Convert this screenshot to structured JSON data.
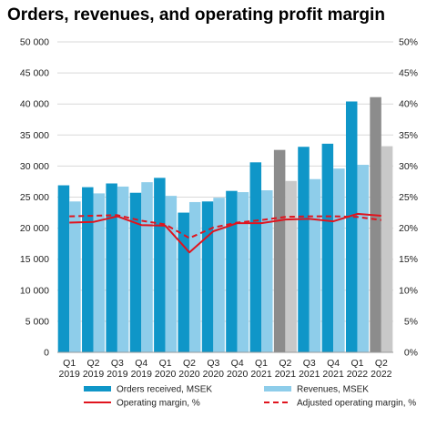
{
  "chart_data": {
    "type": "bar",
    "title": "Orders, revenues, and operating profit margin",
    "categories": [
      [
        "Q1",
        "2019"
      ],
      [
        "Q2",
        "2019"
      ],
      [
        "Q3",
        "2019"
      ],
      [
        "Q4",
        "2019"
      ],
      [
        "Q1",
        "2020"
      ],
      [
        "Q2",
        "2020"
      ],
      [
        "Q3",
        "2020"
      ],
      [
        "Q4",
        "2020"
      ],
      [
        "Q1",
        "2021"
      ],
      [
        "Q2",
        "2021"
      ],
      [
        "Q3",
        "2021"
      ],
      [
        "Q4",
        "2021"
      ],
      [
        "Q1",
        "2022"
      ],
      [
        "Q2",
        "2022"
      ]
    ],
    "y_left": {
      "min": 0,
      "max": 50000,
      "step": 5000,
      "tick_labels": [
        "0",
        "5 000",
        "10 000",
        "15 000",
        "20 000",
        "25 000",
        "30 000",
        "35 000",
        "40 000",
        "45 000",
        "50 000"
      ]
    },
    "y_right": {
      "min": 0,
      "max": 50,
      "step": 5,
      "tick_labels": [
        "0%",
        "5%",
        "10%",
        "15%",
        "20%",
        "25%",
        "30%",
        "35%",
        "40%",
        "45%",
        "50%"
      ]
    },
    "grid": true,
    "legend_position": "bottom",
    "series": [
      {
        "name": "Orders received, MSEK",
        "kind": "bar",
        "axis": "left",
        "color": "#0F96C8",
        "values": [
          26900,
          26600,
          27200,
          25700,
          28100,
          22500,
          24300,
          26000,
          30600,
          32600,
          33100,
          33600,
          40400,
          41100
        ],
        "bar_colors": [
          "#0F96C8",
          "#0F96C8",
          "#0F96C8",
          "#0F96C8",
          "#0F96C8",
          "#0F96C8",
          "#0F96C8",
          "#0F96C8",
          "#0F96C8",
          "#8C8C8C",
          "#0F96C8",
          "#0F96C8",
          "#0F96C8",
          "#8C8C8C"
        ]
      },
      {
        "name": "Revenues, MSEK",
        "kind": "bar",
        "axis": "left",
        "color": "#8ECDEA",
        "values": [
          24300,
          25600,
          26700,
          27400,
          25200,
          24200,
          24900,
          25800,
          26100,
          27600,
          27900,
          29600,
          30200,
          33200
        ],
        "bar_colors": [
          "#8ECDEA",
          "#8ECDEA",
          "#8ECDEA",
          "#8ECDEA",
          "#8ECDEA",
          "#8ECDEA",
          "#8ECDEA",
          "#8ECDEA",
          "#8ECDEA",
          "#C8C8C8",
          "#8ECDEA",
          "#8ECDEA",
          "#8ECDEA",
          "#C8C8C8"
        ]
      },
      {
        "name": "Operating margin, %",
        "kind": "line",
        "axis": "right",
        "color": "#E0141E",
        "dash": "solid",
        "values": [
          20.9,
          21.0,
          21.9,
          20.5,
          20.4,
          16.1,
          19.5,
          20.8,
          20.8,
          21.4,
          21.5,
          21.1,
          22.3,
          22.0
        ]
      },
      {
        "name": "Adjusted operating margin, %",
        "kind": "line",
        "axis": "right",
        "color": "#E0141E",
        "dash": "dashed",
        "values": [
          21.9,
          22.0,
          22.1,
          21.2,
          20.6,
          18.4,
          20.1,
          20.9,
          21.3,
          21.8,
          21.9,
          21.9,
          21.8,
          21.3
        ]
      }
    ]
  }
}
